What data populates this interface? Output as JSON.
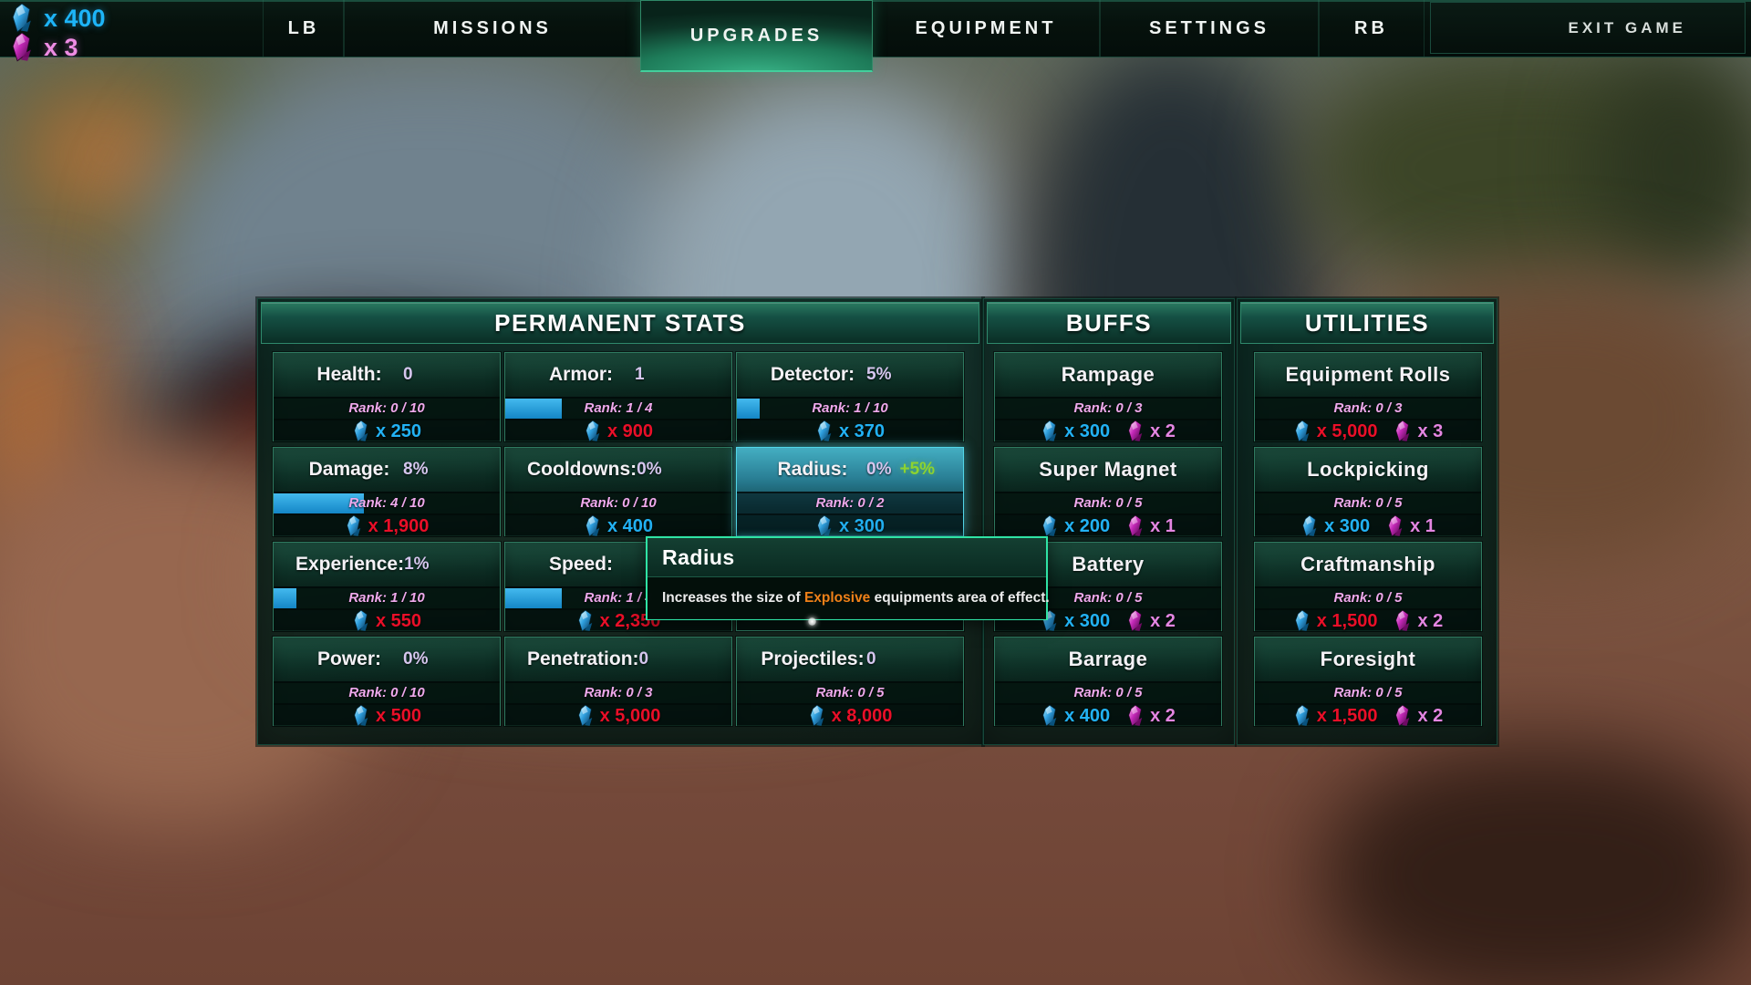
{
  "currency": {
    "blue_amount": "x 400",
    "purple_amount": "x 3"
  },
  "nav": {
    "tabs": [
      {
        "label": "LB",
        "selected": false
      },
      {
        "label": "MISSIONS",
        "selected": false
      },
      {
        "label": "UPGRADES",
        "selected": true
      },
      {
        "label": "EQUIPMENT",
        "selected": false
      },
      {
        "label": "SETTINGS",
        "selected": false
      },
      {
        "label": "RB",
        "selected": false
      }
    ],
    "exit_label": "EXIT GAME"
  },
  "panels": [
    {
      "title": "PERMANENT STATS",
      "style": "stats",
      "cards": [
        {
          "label": "Health:",
          "value": "0",
          "rank": "Rank: 0 / 10",
          "progress": 0,
          "costs": [
            {
              "icon": "blue-gem",
              "amount": "x 250",
              "color": "cyan"
            }
          ]
        },
        {
          "label": "Armor:",
          "value": "1",
          "rank": "Rank: 1 / 4",
          "progress": 0.25,
          "costs": [
            {
              "icon": "blue-gem",
              "amount": "x 900",
              "color": "red"
            }
          ]
        },
        {
          "label": "Detector:",
          "value": "5%",
          "rank": "Rank: 1 / 10",
          "progress": 0.1,
          "costs": [
            {
              "icon": "blue-gem",
              "amount": "x 370",
              "color": "cyan"
            }
          ]
        },
        {
          "label": "Damage:",
          "value": "8%",
          "rank": "Rank: 4 / 10",
          "progress": 0.4,
          "costs": [
            {
              "icon": "blue-gem",
              "amount": "x 1,900",
              "color": "red"
            }
          ]
        },
        {
          "label": "Cooldowns:",
          "value": "0%",
          "rank": "Rank: 0 / 10",
          "progress": 0,
          "costs": [
            {
              "icon": "blue-gem",
              "amount": "x 400",
              "color": "cyan"
            }
          ]
        },
        {
          "label": "Radius:",
          "value": "0%",
          "bonus": "+5%",
          "rank": "Rank: 0 / 2",
          "progress": 0,
          "state": "hover",
          "costs": [
            {
              "icon": "blue-gem",
              "amount": "x 300",
              "color": "cyan"
            }
          ]
        },
        {
          "label": "Experience:",
          "value": "1%",
          "rank": "Rank: 1 / 10",
          "progress": 0.1,
          "costs": [
            {
              "icon": "blue-gem",
              "amount": "x 550",
              "color": "red"
            }
          ]
        },
        {
          "label": "Speed:",
          "value": "",
          "rank": "Rank: 1 / 4",
          "progress": 0.25,
          "costs": [
            {
              "icon": "blue-gem",
              "amount": "x 2,350",
              "color": "red"
            }
          ]
        },
        {
          "label": "",
          "value": "",
          "rank": "",
          "progress": 0,
          "state": "covered",
          "costs": []
        },
        {
          "label": "Power:",
          "value": "0%",
          "rank": "Rank: 0 / 10",
          "progress": 0,
          "costs": [
            {
              "icon": "blue-gem",
              "amount": "x 500",
              "color": "red"
            }
          ]
        },
        {
          "label": "Penetration:",
          "value": "0",
          "rank": "Rank: 0 / 3",
          "progress": 0,
          "costs": [
            {
              "icon": "blue-gem",
              "amount": "x 5,000",
              "color": "red"
            }
          ]
        },
        {
          "label": "Projectiles:",
          "value": "0",
          "rank": "Rank: 0 / 5",
          "progress": 0,
          "costs": [
            {
              "icon": "blue-gem",
              "amount": "x 8,000",
              "color": "red"
            }
          ]
        }
      ]
    },
    {
      "title": "BUFFS",
      "style": "buff",
      "cards": [
        {
          "label": "Rampage",
          "rank": "Rank: 0 / 3",
          "progress": 0,
          "costs": [
            {
              "icon": "blue-gem",
              "amount": "x 300",
              "color": "cyan"
            },
            {
              "icon": "purple-gem",
              "amount": "x 2",
              "color": "pink"
            }
          ]
        },
        {
          "label": "Super Magnet",
          "rank": "Rank: 0 / 5",
          "progress": 0,
          "costs": [
            {
              "icon": "blue-gem",
              "amount": "x 200",
              "color": "cyan"
            },
            {
              "icon": "purple-gem",
              "amount": "x 1",
              "color": "pink"
            }
          ]
        },
        {
          "label": "Battery",
          "rank": "Rank: 0 / 5",
          "progress": 0,
          "costs": [
            {
              "icon": "blue-gem",
              "amount": "x 300",
              "color": "cyan"
            },
            {
              "icon": "purple-gem",
              "amount": "x 2",
              "color": "pink"
            }
          ]
        },
        {
          "label": "Barrage",
          "rank": "Rank: 0 / 5",
          "progress": 0,
          "costs": [
            {
              "icon": "blue-gem",
              "amount": "x 400",
              "color": "cyan"
            },
            {
              "icon": "purple-gem",
              "amount": "x 2",
              "color": "pink"
            }
          ]
        }
      ]
    },
    {
      "title": "UTILITIES",
      "style": "buff",
      "cards": [
        {
          "label": "Equipment Rolls",
          "rank": "Rank: 0 / 3",
          "progress": 0,
          "costs": [
            {
              "icon": "blue-gem",
              "amount": "x 5,000",
              "color": "red"
            },
            {
              "icon": "purple-gem",
              "amount": "x 3",
              "color": "pink"
            }
          ]
        },
        {
          "label": "Lockpicking",
          "rank": "Rank: 0 / 5",
          "progress": 0,
          "costs": [
            {
              "icon": "blue-gem",
              "amount": "x 300",
              "color": "cyan"
            },
            {
              "icon": "purple-gem",
              "amount": "x 1",
              "color": "pink"
            }
          ]
        },
        {
          "label": "Craftmanship",
          "rank": "Rank: 0 / 5",
          "progress": 0,
          "costs": [
            {
              "icon": "blue-gem",
              "amount": "x 1,500",
              "color": "red"
            },
            {
              "icon": "purple-gem",
              "amount": "x 2",
              "color": "pink"
            }
          ]
        },
        {
          "label": "Foresight",
          "rank": "Rank: 0 / 5",
          "progress": 0,
          "costs": [
            {
              "icon": "blue-gem",
              "amount": "x 1,500",
              "color": "red"
            },
            {
              "icon": "purple-gem",
              "amount": "x 2",
              "color": "pink"
            }
          ]
        }
      ]
    }
  ],
  "tooltip": {
    "title": "Radius",
    "body_prefix": "Increases the size of ",
    "body_highlight": "Explosive",
    "body_suffix": " equipments area of effect."
  },
  "colors": {
    "cost_affordable": "#22b2f4",
    "cost_unaffordable": "#ea0f28",
    "purple_cost": "#e486e2",
    "rank_text": "#efa9ec",
    "bonus_green": "#8ed32f",
    "bar_fill": "#1f9cdd",
    "selected_tab_green": "#2fa276",
    "tooltip_border": "#2fe3a4",
    "tooltip_highlight": "#ef8018"
  }
}
